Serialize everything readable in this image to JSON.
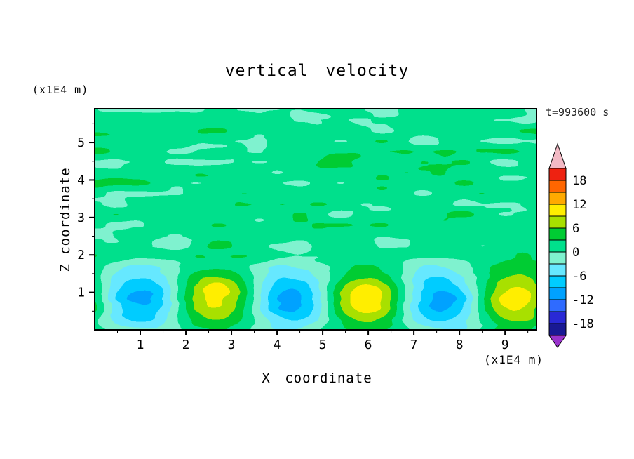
{
  "chart_data": {
    "type": "heatmap",
    "title": "vertical velocity",
    "xlabel": "X coordinate",
    "ylabel": "Z coordinate",
    "x_unit": "(x1E4 m)",
    "y_unit": "(x1E4 m)",
    "time_label": "t=993600 s",
    "x_range": [
      0,
      9.69
    ],
    "y_range": [
      0,
      5.9
    ],
    "x_ticks": [
      1,
      2,
      3,
      4,
      5,
      6,
      7,
      8,
      9
    ],
    "y_ticks": [
      1,
      2,
      3,
      4,
      5
    ],
    "minor_tick_step": 0.5,
    "grid": false,
    "legend_position": "right-colorbar",
    "colorbar": {
      "tick_labels": [
        18,
        12,
        6,
        0,
        -6,
        -12,
        -18
      ],
      "band_edges": [
        -21,
        -18,
        -15,
        -12,
        -9,
        -6,
        -3,
        0,
        3,
        6,
        9,
        12,
        15,
        18,
        21
      ],
      "band_colors": [
        "#191994",
        "#2929d6",
        "#2f6bff",
        "#00a2ff",
        "#00ccff",
        "#66e8ff",
        "#7ff2cf",
        "#00e08c",
        "#00cc33",
        "#a8e000",
        "#ffee00",
        "#ffaa00",
        "#ff6600",
        "#ee2211"
      ],
      "under_color": "#9933cc",
      "over_color": "#f2b9c4"
    },
    "field": {
      "model": "alternating-wave-cells-near-bottom-plus-streaky-noise-above",
      "background_value_band": [
        0,
        3
      ],
      "wave": {
        "amplitude": 10.5,
        "wavelength_x": 3.3,
        "negative_center_x": 1.0,
        "center_z": 0.85,
        "sigma_z": 0.78
      },
      "noise": {
        "amplitude": 3.2,
        "bias": 1.3,
        "bias_z_start": 1.5,
        "bias_z_full": 2.2,
        "envelope_min": 0.55,
        "envelope_z_start": 1.6,
        "envelope_z_full": 2.3,
        "scale_x": 0.9,
        "scale_z": 0.28,
        "seed": 11
      },
      "cells": [
        {
          "x": 1.0,
          "z": 0.85,
          "peak": -10.5
        },
        {
          "x": 2.65,
          "z": 0.85,
          "peak": 10.5
        },
        {
          "x": 4.35,
          "z": 0.85,
          "peak": -10.5
        },
        {
          "x": 6.0,
          "z": 0.85,
          "peak": 10.5
        },
        {
          "x": 7.65,
          "z": 0.85,
          "peak": -10.5
        },
        {
          "x": 9.3,
          "z": 0.85,
          "peak": 10.5
        }
      ]
    }
  }
}
